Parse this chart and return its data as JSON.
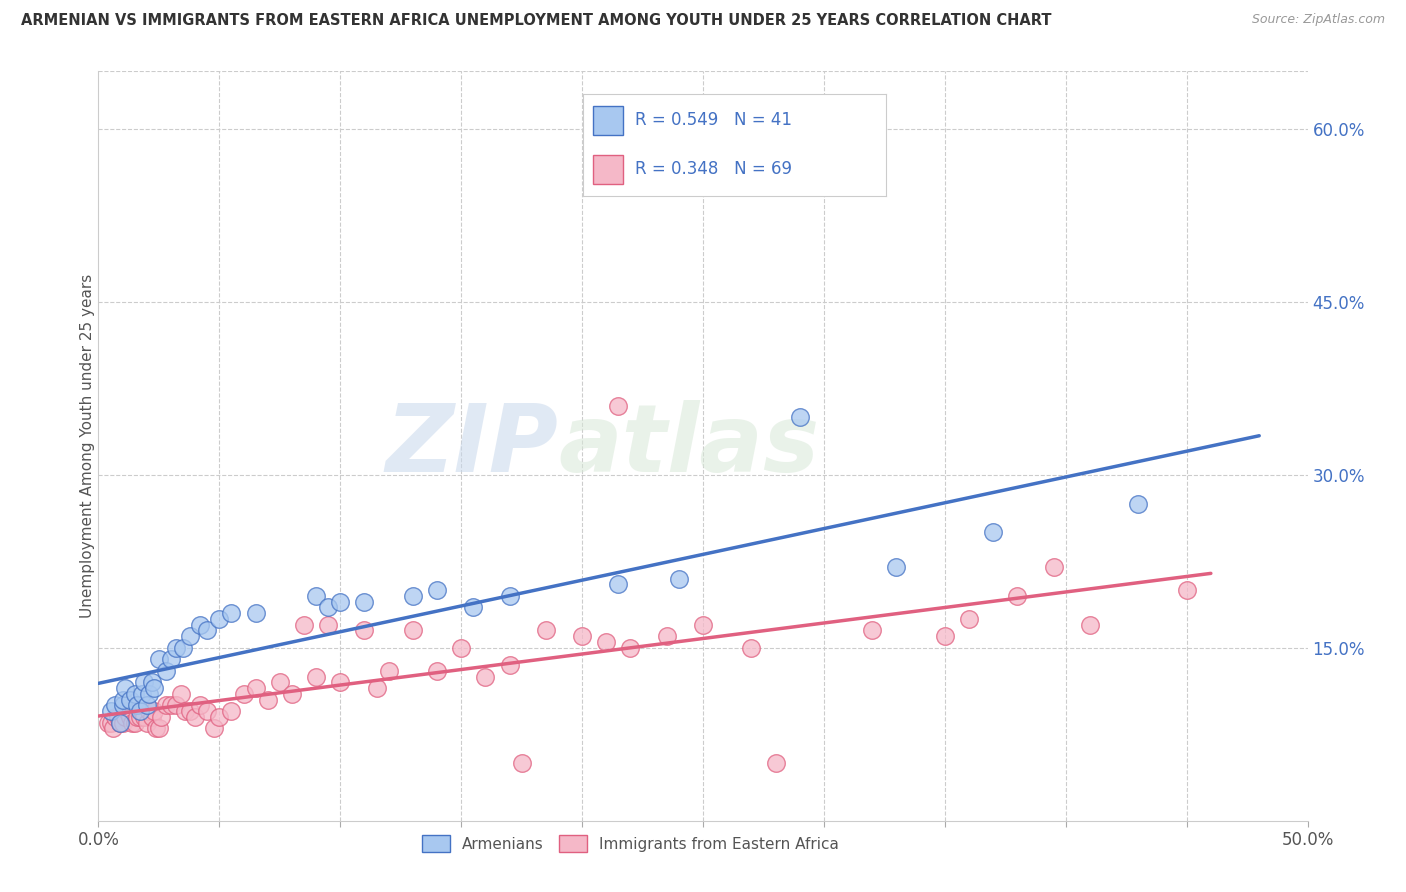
{
  "title": "ARMENIAN VS IMMIGRANTS FROM EASTERN AFRICA UNEMPLOYMENT AMONG YOUTH UNDER 25 YEARS CORRELATION CHART",
  "source": "Source: ZipAtlas.com",
  "ylabel": "Unemployment Among Youth under 25 years",
  "xlim": [
    0.0,
    0.5
  ],
  "ylim": [
    0.0,
    0.65
  ],
  "xticks": [
    0.0,
    0.05,
    0.1,
    0.15,
    0.2,
    0.25,
    0.3,
    0.35,
    0.4,
    0.45,
    0.5
  ],
  "ytick_labels_right": [
    "15.0%",
    "30.0%",
    "45.0%",
    "60.0%"
  ],
  "ytick_vals_right": [
    0.15,
    0.3,
    0.45,
    0.6
  ],
  "watermark_zip": "ZIP",
  "watermark_atlas": "atlas",
  "armenian_face_color": "#A8C8F0",
  "armenian_edge_color": "#4472C4",
  "eastern_africa_face_color": "#F5B8C8",
  "eastern_africa_edge_color": "#E06080",
  "armenian_line_color": "#4472C4",
  "eastern_africa_line_color": "#E06080",
  "R_armenian": 0.549,
  "N_armenian": 41,
  "R_eastern_africa": 0.348,
  "N_eastern_africa": 69,
  "armenians_x": [
    0.005,
    0.007,
    0.009,
    0.01,
    0.01,
    0.011,
    0.013,
    0.015,
    0.016,
    0.017,
    0.018,
    0.019,
    0.02,
    0.021,
    0.022,
    0.023,
    0.025,
    0.028,
    0.03,
    0.032,
    0.035,
    0.038,
    0.042,
    0.045,
    0.05,
    0.055,
    0.065,
    0.09,
    0.095,
    0.1,
    0.11,
    0.13,
    0.14,
    0.155,
    0.17,
    0.215,
    0.24,
    0.29,
    0.33,
    0.37,
    0.43
  ],
  "armenians_y": [
    0.095,
    0.1,
    0.085,
    0.1,
    0.105,
    0.115,
    0.105,
    0.11,
    0.1,
    0.095,
    0.11,
    0.12,
    0.1,
    0.11,
    0.12,
    0.115,
    0.14,
    0.13,
    0.14,
    0.15,
    0.15,
    0.16,
    0.17,
    0.165,
    0.175,
    0.18,
    0.18,
    0.195,
    0.185,
    0.19,
    0.19,
    0.195,
    0.2,
    0.185,
    0.195,
    0.205,
    0.21,
    0.35,
    0.22,
    0.25,
    0.275
  ],
  "eastern_africa_x": [
    0.004,
    0.005,
    0.006,
    0.007,
    0.008,
    0.009,
    0.01,
    0.011,
    0.012,
    0.013,
    0.014,
    0.015,
    0.016,
    0.017,
    0.018,
    0.019,
    0.02,
    0.021,
    0.022,
    0.023,
    0.024,
    0.025,
    0.026,
    0.028,
    0.03,
    0.032,
    0.034,
    0.036,
    0.038,
    0.04,
    0.042,
    0.045,
    0.048,
    0.05,
    0.055,
    0.06,
    0.065,
    0.07,
    0.075,
    0.08,
    0.085,
    0.09,
    0.095,
    0.1,
    0.11,
    0.115,
    0.12,
    0.13,
    0.14,
    0.15,
    0.16,
    0.17,
    0.175,
    0.185,
    0.2,
    0.21,
    0.215,
    0.22,
    0.235,
    0.25,
    0.27,
    0.28,
    0.32,
    0.35,
    0.36,
    0.38,
    0.395,
    0.41,
    0.45
  ],
  "eastern_africa_y": [
    0.085,
    0.085,
    0.08,
    0.09,
    0.09,
    0.085,
    0.085,
    0.09,
    0.095,
    0.09,
    0.085,
    0.085,
    0.09,
    0.09,
    0.095,
    0.09,
    0.085,
    0.095,
    0.09,
    0.095,
    0.08,
    0.08,
    0.09,
    0.1,
    0.1,
    0.1,
    0.11,
    0.095,
    0.095,
    0.09,
    0.1,
    0.095,
    0.08,
    0.09,
    0.095,
    0.11,
    0.115,
    0.105,
    0.12,
    0.11,
    0.17,
    0.125,
    0.17,
    0.12,
    0.165,
    0.115,
    0.13,
    0.165,
    0.13,
    0.15,
    0.125,
    0.135,
    0.05,
    0.165,
    0.16,
    0.155,
    0.36,
    0.15,
    0.16,
    0.17,
    0.15,
    0.05,
    0.165,
    0.16,
    0.175,
    0.195,
    0.22,
    0.17,
    0.2
  ]
}
